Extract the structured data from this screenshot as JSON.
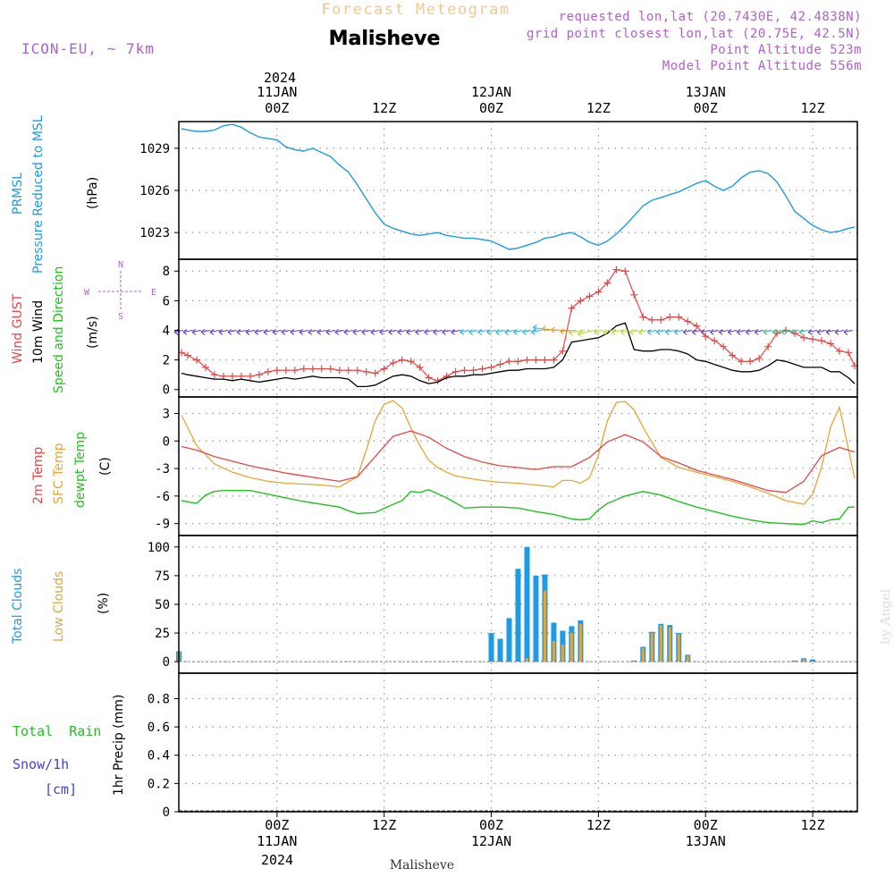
{
  "header": {
    "title_top": "Forecast Meteogram",
    "location": "Malisheve",
    "model": "ICON-EU, ~ 7km",
    "requested": "requested lon,lat (20.7430E, 42.4838N)",
    "grid": "grid point closest lon,lat (20.75E, 42.5N)",
    "point_alt": "Point Altitude 523m",
    "model_alt": "Model Point Altitude 556m",
    "year": "2024",
    "footer_location": "Malisheve",
    "watermark": "by Angel"
  },
  "time_axis": {
    "ticks": [
      {
        "x": 24,
        "top": [
          "11JAN",
          "00Z"
        ],
        "bottom": [
          "00Z",
          "11JAN",
          "2024"
        ]
      },
      {
        "x": 36,
        "top": [
          "12Z"
        ],
        "bottom": [
          "12Z"
        ]
      },
      {
        "x": 48,
        "top": [
          "12JAN",
          "00Z"
        ],
        "bottom": [
          "00Z",
          "12JAN"
        ]
      },
      {
        "x": 60,
        "top": [
          "12Z"
        ],
        "bottom": [
          "12Z"
        ]
      },
      {
        "x": 72,
        "top": [
          "13JAN",
          "00Z"
        ],
        "bottom": [
          "00Z",
          "13JAN"
        ]
      },
      {
        "x": 84,
        "top": [
          "12Z"
        ],
        "bottom": [
          "12Z"
        ]
      }
    ],
    "x_range_hours": [
      13,
      89
    ]
  },
  "colors": {
    "prmsl": "#1e9be6",
    "gust": "#e84646",
    "wind": "#000000",
    "wind_dir": "#22c022",
    "t2m": "#e84646",
    "tsfc": "#e6a637",
    "dewpt": "#22c022",
    "total_clouds": "#1e9be6",
    "low_clouds": "#d8a948",
    "rain": "#22c022",
    "snow": "#4040e0",
    "compass": "#b060d0",
    "info": "#b060d0",
    "title_top": "#f0c890"
  },
  "chart_data": [
    {
      "type": "line",
      "panel": "pressure",
      "ylabel_lines": [
        "PRMSL",
        "Pressure Reduced to MSL"
      ],
      "unit": "(hPa)",
      "ylim": [
        1021.1,
        1030.9
      ],
      "yticks": [
        1023,
        1026,
        1029
      ],
      "grid": true,
      "series": [
        {
          "key": "prmsl",
          "x": [
            13.3,
            14,
            15,
            16,
            17,
            18,
            19,
            20,
            21,
            22,
            23,
            24,
            25,
            26,
            27,
            28,
            29,
            30,
            31,
            32,
            33,
            34,
            35,
            36,
            37,
            38,
            39,
            40,
            41,
            42,
            43,
            44,
            45,
            46,
            47,
            48,
            49,
            50,
            51,
            52,
            53,
            54,
            55,
            56,
            57,
            58,
            59,
            60,
            61,
            62,
            63,
            64,
            65,
            66,
            67,
            68,
            69,
            70,
            71,
            72,
            73,
            74,
            75,
            76,
            77,
            78,
            79,
            80,
            81,
            82,
            83,
            84,
            85,
            86,
            87,
            88,
            88.7
          ],
          "values": [
            1030.4,
            1030.3,
            1030.2,
            1030.2,
            1030.3,
            1030.6,
            1030.7,
            1030.5,
            1030.1,
            1029.8,
            1029.7,
            1029.6,
            1029.1,
            1028.9,
            1028.8,
            1029.0,
            1028.7,
            1028.4,
            1027.8,
            1027.3,
            1026.4,
            1025.4,
            1024.4,
            1023.6,
            1023.3,
            1023.1,
            1022.9,
            1022.8,
            1022.9,
            1023.0,
            1022.8,
            1022.7,
            1022.6,
            1022.6,
            1022.5,
            1022.4,
            1022.1,
            1021.8,
            1021.9,
            1022.1,
            1022.3,
            1022.6,
            1022.7,
            1022.9,
            1023.0,
            1022.7,
            1022.3,
            1022.1,
            1022.4,
            1022.9,
            1023.5,
            1024.2,
            1024.9,
            1025.3,
            1025.5,
            1025.7,
            1025.9,
            1026.2,
            1026.5,
            1026.7,
            1026.3,
            1026.0,
            1026.3,
            1026.9,
            1027.3,
            1027.4,
            1027.2,
            1026.6,
            1025.6,
            1024.5,
            1024.0,
            1023.5,
            1023.2,
            1023.0,
            1023.1,
            1023.3,
            1023.4
          ]
        }
      ]
    },
    {
      "type": "line",
      "panel": "wind",
      "ylabel_lines": [
        "Wind GUST",
        "10m Wind",
        "Speed and Direction"
      ],
      "unit": "(m/s)",
      "ylim": [
        -0.5,
        8.8
      ],
      "yticks": [
        0,
        2,
        4,
        6,
        8
      ],
      "grid": true,
      "compass": {
        "n": "N",
        "s": "S",
        "w": "W",
        "e": "E"
      },
      "series": [
        {
          "key": "gust",
          "x": [
            13.3,
            14,
            15,
            16,
            17,
            18,
            19,
            20,
            21,
            22,
            23,
            24,
            25,
            26,
            27,
            28,
            29,
            30,
            31,
            32,
            33,
            34,
            35,
            36,
            37,
            38,
            39,
            40,
            41,
            42,
            43,
            44,
            45,
            46,
            47,
            48,
            49,
            50,
            51,
            52,
            53,
            54,
            55,
            56,
            57,
            58,
            59,
            60,
            61,
            62,
            63,
            64,
            65,
            66,
            67,
            68,
            69,
            70,
            71,
            72,
            73,
            74,
            75,
            76,
            77,
            78,
            79,
            80,
            81,
            82,
            83,
            84,
            85,
            86,
            87,
            88,
            88.7
          ],
          "values": [
            2.5,
            2.3,
            2.0,
            1.5,
            1.0,
            0.9,
            0.9,
            0.9,
            0.9,
            1.0,
            1.2,
            1.3,
            1.3,
            1.3,
            1.4,
            1.4,
            1.4,
            1.4,
            1.3,
            1.3,
            1.3,
            1.2,
            1.1,
            1.4,
            1.8,
            2.0,
            1.9,
            1.5,
            0.8,
            0.6,
            0.9,
            1.2,
            1.3,
            1.3,
            1.4,
            1.5,
            1.7,
            1.9,
            1.9,
            2.0,
            2.0,
            2.0,
            2.0,
            2.6,
            5.5,
            6.0,
            6.3,
            6.6,
            7.2,
            8.1,
            8.0,
            6.4,
            4.9,
            4.7,
            4.7,
            4.9,
            4.9,
            4.6,
            4.3,
            3.6,
            3.3,
            2.9,
            2.3,
            1.9,
            1.9,
            2.1,
            2.9,
            3.8,
            4.0,
            3.8,
            3.5,
            3.4,
            3.3,
            3.1,
            2.6,
            2.5,
            1.6
          ]
        },
        {
          "key": "wind",
          "x": [
            13.3,
            14,
            15,
            16,
            17,
            18,
            19,
            20,
            21,
            22,
            23,
            24,
            25,
            26,
            27,
            28,
            29,
            30,
            31,
            32,
            33,
            34,
            35,
            36,
            37,
            38,
            39,
            40,
            41,
            42,
            43,
            44,
            45,
            46,
            47,
            48,
            49,
            50,
            51,
            52,
            53,
            54,
            55,
            56,
            57,
            58,
            59,
            60,
            61,
            62,
            63,
            64,
            65,
            66,
            67,
            68,
            69,
            70,
            71,
            72,
            73,
            74,
            75,
            76,
            77,
            78,
            79,
            80,
            81,
            82,
            83,
            84,
            85,
            86,
            87,
            88,
            88.7
          ],
          "values": [
            1.1,
            1.0,
            0.9,
            0.8,
            0.7,
            0.7,
            0.6,
            0.7,
            0.6,
            0.5,
            0.6,
            0.7,
            0.8,
            0.7,
            0.8,
            0.9,
            0.8,
            0.8,
            0.8,
            0.7,
            0.2,
            0.2,
            0.3,
            0.6,
            0.9,
            1.0,
            0.9,
            0.6,
            0.4,
            0.5,
            0.8,
            0.9,
            0.9,
            1.0,
            1.0,
            1.1,
            1.2,
            1.3,
            1.3,
            1.4,
            1.4,
            1.4,
            1.5,
            2.0,
            3.2,
            3.3,
            3.4,
            3.5,
            3.8,
            4.3,
            4.5,
            2.7,
            2.6,
            2.6,
            2.7,
            2.7,
            2.6,
            2.4,
            2.0,
            1.9,
            1.7,
            1.5,
            1.3,
            1.2,
            1.2,
            1.3,
            1.6,
            2.0,
            1.9,
            1.7,
            1.5,
            1.5,
            1.5,
            1.2,
            1.2,
            0.8,
            0.4
          ]
        }
      ]
    },
    {
      "type": "line",
      "panel": "temperature",
      "ylabel_lines": [
        "2m Temp",
        "SFC Temp",
        "dewpt Temp"
      ],
      "unit": "(C)",
      "ylim": [
        -10.3,
        4.8
      ],
      "yticks": [
        3,
        0,
        -3,
        -6,
        -9
      ],
      "grid": true,
      "series": [
        {
          "key": "t2m",
          "x": [
            13.3,
            15,
            17,
            19,
            21,
            23,
            25,
            27,
            29,
            31,
            33,
            35,
            37,
            39,
            41,
            43,
            45,
            47,
            49,
            51,
            53,
            55,
            57,
            59,
            61,
            63,
            65,
            67,
            69,
            71,
            73,
            75,
            77,
            79,
            81,
            83,
            85,
            87,
            88.7
          ],
          "values": [
            -0.6,
            -1.0,
            -1.7,
            -2.2,
            -2.7,
            -3.1,
            -3.5,
            -3.8,
            -4.1,
            -4.4,
            -3.9,
            -1.7,
            0.5,
            1.1,
            0.4,
            -0.8,
            -1.7,
            -2.3,
            -2.7,
            -2.9,
            -3.1,
            -2.8,
            -2.8,
            -1.8,
            -0.1,
            0.7,
            -0.1,
            -1.7,
            -2.4,
            -3.2,
            -3.7,
            -4.2,
            -4.8,
            -5.4,
            -5.6,
            -4.4,
            -1.6,
            -0.7,
            -1.2
          ]
        },
        {
          "key": "tsfc",
          "x": [
            13.3,
            15,
            17,
            19,
            21,
            23,
            25,
            27,
            29,
            31,
            33,
            34,
            35,
            36,
            37,
            38,
            39,
            40,
            41,
            42,
            43,
            44,
            45,
            47,
            49,
            51,
            53,
            55,
            56,
            57,
            58,
            59,
            60,
            61,
            62,
            63,
            64,
            65,
            67,
            69,
            71,
            73,
            75,
            77,
            79,
            81,
            83,
            84,
            85,
            86,
            87,
            88.7
          ],
          "values": [
            2.8,
            -0.5,
            -2.5,
            -3.4,
            -4.0,
            -4.4,
            -4.6,
            -4.7,
            -4.8,
            -5.0,
            -3.9,
            -1.0,
            2.2,
            4.0,
            4.4,
            3.6,
            1.4,
            -0.5,
            -2.1,
            -2.9,
            -3.4,
            -3.8,
            -4.0,
            -4.3,
            -4.5,
            -4.6,
            -4.8,
            -5.0,
            -4.3,
            -4.3,
            -4.6,
            -4.0,
            -1.5,
            2.2,
            4.2,
            4.3,
            3.4,
            1.5,
            -1.8,
            -2.9,
            -3.4,
            -3.9,
            -4.4,
            -5.0,
            -5.7,
            -6.5,
            -6.9,
            -5.8,
            -2.8,
            1.5,
            3.7,
            -4.1
          ]
        },
        {
          "key": "dewpt",
          "x": [
            13.3,
            15,
            16,
            17,
            18,
            19,
            21,
            23,
            25,
            27,
            29,
            31,
            32,
            33,
            35,
            37,
            38,
            39,
            40,
            41,
            43,
            45,
            47,
            49,
            51,
            53,
            55,
            57,
            58,
            59,
            60,
            61,
            63,
            65,
            67,
            69,
            71,
            73,
            75,
            77,
            79,
            81,
            83,
            84,
            85,
            86,
            87,
            88,
            88.7
          ],
          "values": [
            -6.5,
            -6.8,
            -5.9,
            -5.5,
            -5.4,
            -5.4,
            -5.4,
            -5.8,
            -6.2,
            -6.6,
            -6.9,
            -7.2,
            -7.6,
            -7.9,
            -7.8,
            -6.9,
            -6.5,
            -5.5,
            -5.6,
            -5.3,
            -6.2,
            -7.3,
            -7.2,
            -7.2,
            -7.3,
            -7.7,
            -8.0,
            -8.5,
            -8.6,
            -8.5,
            -7.5,
            -6.8,
            -6.0,
            -5.5,
            -5.9,
            -6.6,
            -7.2,
            -7.7,
            -8.2,
            -8.6,
            -8.9,
            -9.0,
            -9.1,
            -8.7,
            -8.9,
            -8.6,
            -8.5,
            -7.2,
            -7.2
          ]
        }
      ]
    },
    {
      "type": "bar",
      "panel": "clouds",
      "ylabel_lines": [
        "Total Clouds",
        "Low Clouds"
      ],
      "unit": "(%)",
      "ylim": [
        -10,
        110
      ],
      "yticks": [
        0,
        25,
        50,
        75,
        100
      ],
      "grid": true,
      "series": [
        {
          "key": "total_clouds",
          "x": [
            13,
            48,
            49,
            50,
            51,
            52,
            53,
            54,
            55,
            56,
            57,
            58,
            59,
            64,
            65,
            66,
            67,
            68,
            69,
            70,
            71,
            82,
            83,
            84
          ],
          "values": [
            9,
            25,
            20,
            38,
            81,
            100,
            75,
            76,
            34,
            27,
            31,
            36,
            0,
            1,
            13,
            26,
            33,
            32,
            25,
            6,
            0,
            1,
            3,
            2
          ]
        },
        {
          "key": "low_clouds",
          "x": [
            13,
            52,
            53,
            54,
            55,
            56,
            57,
            58,
            65,
            66,
            67,
            68,
            69,
            70,
            83
          ],
          "values": [
            8,
            3,
            0,
            62,
            18,
            15,
            25,
            33,
            12,
            25,
            32,
            30,
            24,
            5,
            2
          ]
        }
      ]
    },
    {
      "type": "bar",
      "panel": "precip",
      "ylabel_lines": [
        "Total  Rain",
        "Snow/1h",
        "[cm]"
      ],
      "unit": "1hr Precip (mm)",
      "ylim": [
        0,
        0.98
      ],
      "yticks": [
        0,
        0.2,
        0.4,
        0.6,
        0.8
      ],
      "ytick_labels": [
        "0",
        "0.2",
        "0.4",
        "0.6",
        "0.8"
      ],
      "grid": true,
      "series": [
        {
          "key": "rain",
          "x": [],
          "values": []
        },
        {
          "key": "snow",
          "x": [],
          "values": []
        }
      ]
    }
  ]
}
